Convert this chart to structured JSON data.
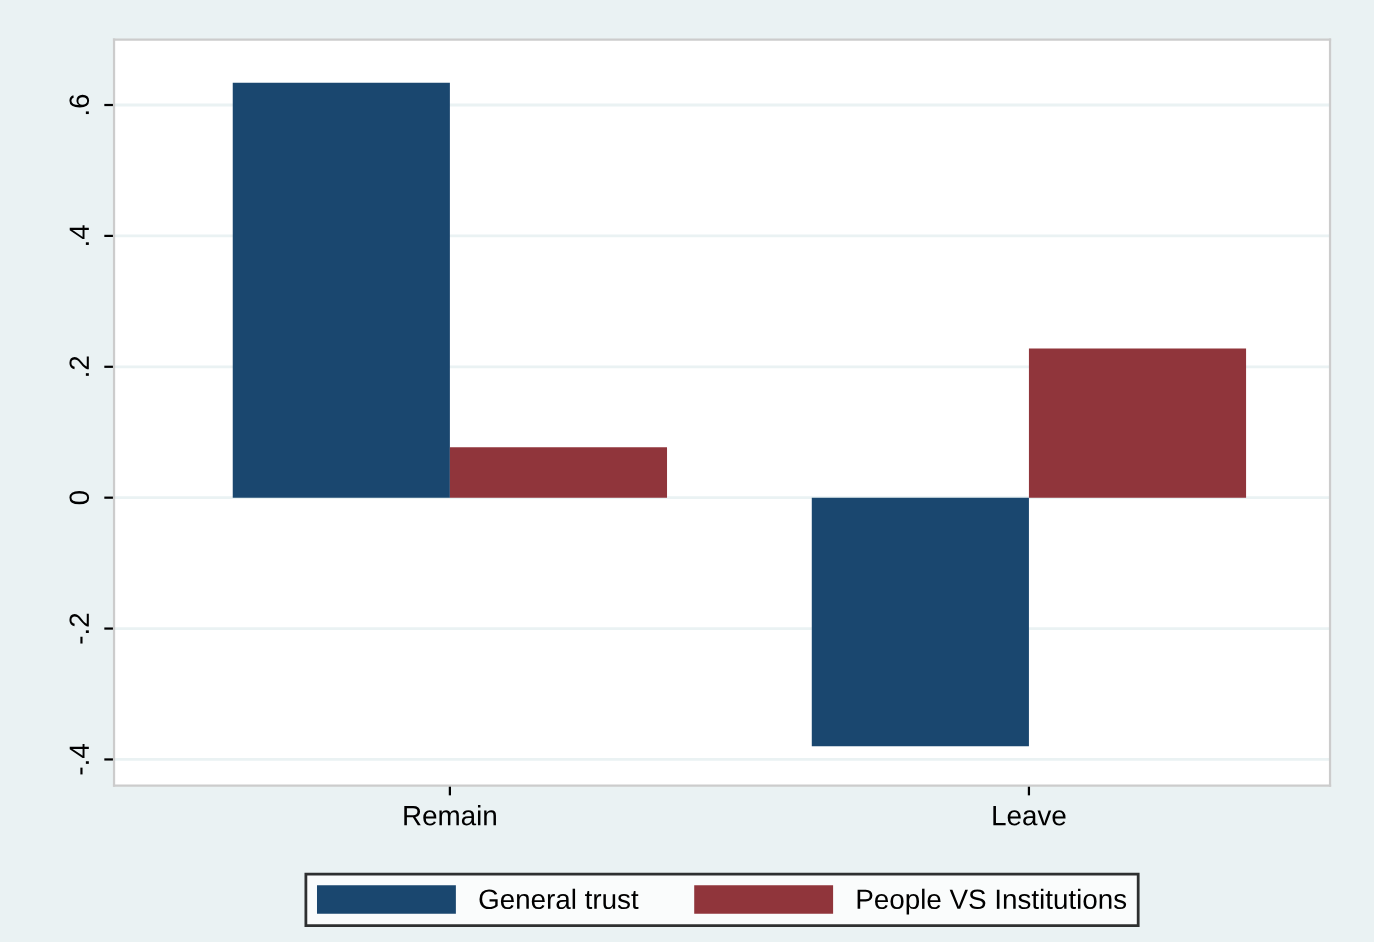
{
  "chart_data": {
    "type": "bar",
    "categories": [
      "Remain",
      "Leave"
    ],
    "series": [
      {
        "name": "General trust",
        "color": "#1a476f",
        "values": [
          0.634,
          -0.38
        ]
      },
      {
        "name": "People VS Institutions",
        "color": "#90353b",
        "values": [
          0.077,
          0.228
        ]
      }
    ],
    "ylim": [
      -0.44,
      0.7
    ],
    "yticks": [
      {
        "value": -0.4,
        "label": "-.4"
      },
      {
        "value": -0.2,
        "label": "-.2"
      },
      {
        "value": 0,
        "label": "0"
      },
      {
        "value": 0.2,
        "label": ".2"
      },
      {
        "value": 0.4,
        "label": ".4"
      },
      {
        "value": 0.6,
        "label": ".6"
      }
    ],
    "grid": "y",
    "legend": "bottom"
  }
}
